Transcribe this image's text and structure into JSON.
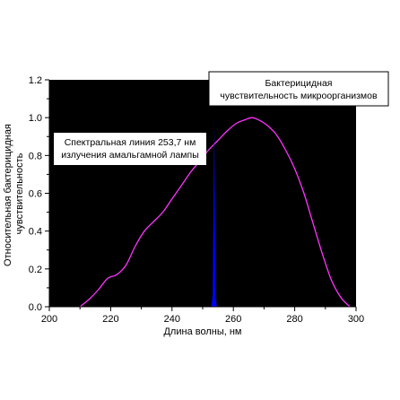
{
  "chart_data": {
    "type": "line",
    "xlabel": "Длина волны, нм",
    "ylabel_lines": [
      "Относительная бактерицидная",
      "чувствительность"
    ],
    "xlim": [
      200,
      300
    ],
    "ylim": [
      0,
      1.2
    ],
    "x_ticks": [
      200,
      220,
      240,
      260,
      280,
      300
    ],
    "y_ticks": [
      "0.0",
      "0.2",
      "0.4",
      "0.6",
      "0.8",
      "1.0",
      "1.2"
    ],
    "plot_background": "#000000",
    "grid": false,
    "series": [
      {
        "color": "#ff33ff",
        "x": [
          210,
          213,
          216,
          219,
          222,
          225,
          228,
          231,
          234,
          237,
          240,
          243,
          246,
          249,
          252,
          255,
          258,
          261,
          264,
          266,
          268,
          271,
          274,
          277,
          280,
          283,
          286,
          289,
          292,
          295,
          298
        ],
        "y": [
          0.0,
          0.04,
          0.09,
          0.15,
          0.17,
          0.22,
          0.32,
          0.4,
          0.45,
          0.5,
          0.57,
          0.64,
          0.71,
          0.77,
          0.83,
          0.88,
          0.93,
          0.97,
          0.99,
          1.0,
          0.99,
          0.96,
          0.91,
          0.83,
          0.73,
          0.6,
          0.44,
          0.28,
          0.14,
          0.05,
          0.0
        ]
      },
      {
        "color": "#0000ff",
        "kind": "spectral-line",
        "x": 253.7,
        "y": 1.0
      }
    ],
    "annotations": [
      {
        "id": "sensitivity",
        "lines": [
          "Бактерицидная",
          "чувствительность микроорганизмов"
        ]
      },
      {
        "id": "spectral",
        "lines": [
          "Спектральная линия 253,7 нм",
          "излучения амальгамной лампы"
        ]
      }
    ]
  }
}
